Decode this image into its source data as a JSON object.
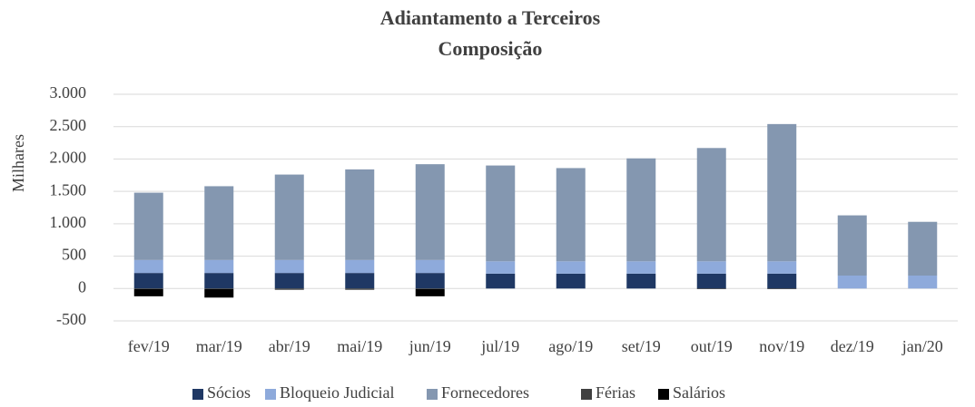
{
  "chart_data": {
    "type": "stacked_bar",
    "title": "Adiantamento a Terceiros",
    "subtitle": "Composição",
    "y_label": "Milhares",
    "categories": [
      "fev/19",
      "mar/19",
      "abr/19",
      "mai/19",
      "jun/19",
      "jul/19",
      "ago/19",
      "set/19",
      "out/19",
      "nov/19",
      "dez/19",
      "jan/20"
    ],
    "series": [
      {
        "name": "Sócios",
        "color": "#1f3864",
        "values": [
          240,
          240,
          240,
          240,
          240,
          230,
          230,
          230,
          230,
          230,
          0,
          0
        ]
      },
      {
        "name": "Bloqueio Judicial",
        "color": "#8eaadb",
        "values": [
          200,
          200,
          200,
          200,
          200,
          190,
          190,
          190,
          190,
          190,
          200,
          200
        ]
      },
      {
        "name": "Fornecedores",
        "color": "#8497b0",
        "values": [
          1040,
          1140,
          1320,
          1400,
          1480,
          1480,
          1440,
          1590,
          1750,
          2120,
          930,
          830
        ]
      },
      {
        "name": "Férias",
        "color": "#404040",
        "values": [
          -10,
          -10,
          -20,
          -20,
          -10,
          0,
          0,
          0,
          -10,
          -10,
          0,
          0
        ]
      },
      {
        "name": "Salários",
        "color": "#000000",
        "values": [
          -110,
          -130,
          0,
          0,
          -110,
          0,
          0,
          0,
          0,
          0,
          0,
          0
        ]
      }
    ],
    "ylim": [
      -500,
      3000
    ],
    "yticks": [
      -500,
      0,
      500,
      {
        "value": 1000,
        "label": "1.000"
      },
      {
        "value": 1500,
        "label": "1.500"
      },
      {
        "value": 2000,
        "label": "2.000"
      },
      {
        "value": 2500,
        "label": "2.500"
      },
      {
        "value": 3000,
        "label": "3.000"
      }
    ],
    "grid": true,
    "legend": "bottom"
  }
}
